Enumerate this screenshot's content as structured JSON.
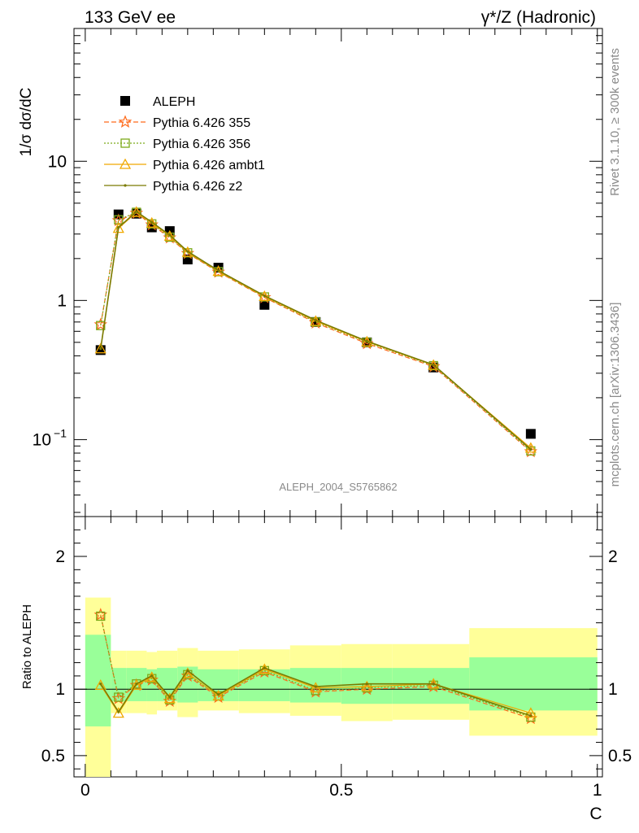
{
  "header": {
    "left": "133 GeV ee",
    "right": "γ*/Z (Hadronic)"
  },
  "side": {
    "rivet": "Rivet 3.1.10, ≥ 300k events",
    "mcplots": "mcplots.cern.ch [arXiv:1306.3436]"
  },
  "analysis_id": "ALEPH_2004_S5765862",
  "colors": {
    "data": "#000000",
    "p355": "#ff6a1a",
    "p356": "#7caa1a",
    "ambt1": "#f0a800",
    "z2": "#7a7a00",
    "band_inner": "#99ff99",
    "band_outer": "#ffff99"
  },
  "chart_data": [
    {
      "type": "scatter",
      "panel": "main",
      "ylabel": "1/σ  dσ/dC",
      "yscale": "log",
      "xlim": [
        0,
        1
      ],
      "ylim": [
        0.028,
        90
      ],
      "y_ticks": [
        {
          "value": 0.1,
          "label": "10",
          "sup": "−1"
        },
        {
          "value": 1,
          "label": "1",
          "sup": ""
        },
        {
          "value": 10,
          "label": "10",
          "sup": ""
        }
      ],
      "legend_placement": "upper-left",
      "x": [
        0.03,
        0.065,
        0.1,
        0.13,
        0.165,
        0.2,
        0.26,
        0.35,
        0.45,
        0.55,
        0.68,
        0.87
      ],
      "series": [
        {
          "name": "ALEPH",
          "key": "data",
          "marker": "square",
          "values": [
            0.44,
            4.15,
            4.2,
            3.35,
            3.15,
            1.97,
            1.72,
            0.93,
            0.7,
            0.5,
            0.33,
            0.11
          ]
        },
        {
          "name": "Pythia 6.426 355",
          "key": "p355",
          "marker": "star",
          "dash": "6,3",
          "values": [
            0.67,
            3.75,
            4.25,
            3.5,
            2.82,
            2.18,
            1.6,
            1.05,
            0.69,
            0.49,
            0.335,
            0.082
          ]
        },
        {
          "name": "Pythia 6.426 356",
          "key": "p356",
          "marker": "open-square",
          "dash": "2,2",
          "values": [
            0.66,
            3.8,
            4.3,
            3.55,
            2.85,
            2.2,
            1.61,
            1.06,
            0.7,
            0.5,
            0.34,
            0.083
          ]
        },
        {
          "name": "Pythia 6.426 ambt1",
          "key": "ambt1",
          "marker": "triangle",
          "dash": "",
          "values": [
            0.45,
            3.3,
            4.3,
            3.6,
            2.9,
            2.22,
            1.62,
            1.07,
            0.71,
            0.505,
            0.343,
            0.087
          ]
        },
        {
          "name": "Pythia 6.426 z2",
          "key": "z2",
          "marker": "dot",
          "dash": "",
          "values": [
            0.45,
            3.35,
            4.35,
            3.65,
            2.95,
            2.25,
            1.64,
            1.08,
            0.72,
            0.51,
            0.345,
            0.085
          ]
        }
      ]
    },
    {
      "type": "line",
      "panel": "ratio",
      "xlabel": "C",
      "ylabel": "Ratio to ALEPH",
      "xlim": [
        0,
        1
      ],
      "ylim": [
        0.34,
        2.3
      ],
      "x_ticks": [
        {
          "value": 0,
          "label": "0"
        },
        {
          "value": 0.5,
          "label": "0.5"
        },
        {
          "value": 1,
          "label": "1"
        }
      ],
      "y_ticks": [
        {
          "value": 0.5,
          "label": "0.5"
        },
        {
          "value": 1,
          "label": "1"
        },
        {
          "value": 2,
          "label": "2"
        }
      ],
      "x": [
        0.03,
        0.065,
        0.1,
        0.13,
        0.165,
        0.2,
        0.26,
        0.35,
        0.45,
        0.55,
        0.68,
        0.87
      ],
      "bands": {
        "edges": [
          0,
          0.05,
          0.08,
          0.12,
          0.14,
          0.18,
          0.22,
          0.3,
          0.4,
          0.5,
          0.6,
          0.75,
          1.0
        ],
        "inner_low": [
          0.72,
          0.91,
          0.91,
          0.91,
          0.91,
          0.9,
          0.91,
          0.91,
          0.9,
          0.89,
          0.89,
          0.84
        ],
        "inner_high": [
          1.41,
          1.16,
          1.16,
          1.15,
          1.16,
          1.17,
          1.15,
          1.15,
          1.16,
          1.16,
          1.16,
          1.24
        ],
        "outer_low": [
          0.34,
          0.82,
          0.82,
          0.81,
          0.84,
          0.79,
          0.84,
          0.82,
          0.8,
          0.76,
          0.77,
          0.65
        ],
        "outer_high": [
          1.69,
          1.29,
          1.29,
          1.28,
          1.29,
          1.31,
          1.29,
          1.3,
          1.33,
          1.34,
          1.34,
          1.46
        ]
      },
      "series": [
        {
          "name": "Pythia 6.426 355",
          "key": "p355",
          "marker": "star",
          "dash": "6,3",
          "values": [
            1.56,
            0.93,
            1.03,
            1.07,
            0.91,
            1.1,
            0.94,
            1.13,
            0.98,
            1.0,
            1.02,
            0.78
          ]
        },
        {
          "name": "Pythia 6.426 356",
          "key": "p356",
          "marker": "open-square",
          "dash": "2,2",
          "values": [
            1.55,
            0.94,
            1.04,
            1.08,
            0.92,
            1.11,
            0.95,
            1.14,
            0.99,
            1.01,
            1.03,
            0.79
          ]
        },
        {
          "name": "Pythia 6.426 ambt1",
          "key": "ambt1",
          "marker": "triangle",
          "dash": "",
          "values": [
            1.03,
            0.82,
            1.03,
            1.09,
            0.93,
            1.12,
            0.95,
            1.15,
            1.01,
            1.02,
            1.04,
            0.82
          ]
        },
        {
          "name": "Pythia 6.426 z2",
          "key": "z2",
          "marker": "dot",
          "dash": "",
          "values": [
            1.04,
            0.83,
            1.04,
            1.1,
            0.94,
            1.14,
            0.96,
            1.16,
            1.02,
            1.04,
            1.04,
            0.8
          ]
        }
      ]
    }
  ]
}
